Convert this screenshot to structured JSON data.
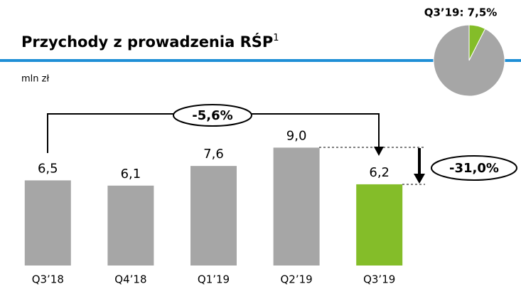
{
  "chart_data": [
    {
      "type": "bar",
      "title": "Przychody z prowadzenia RŚP",
      "title_superscript": "1",
      "subtitle": "mln zł",
      "categories": [
        "Q3’18",
        "Q4’18",
        "Q1’19",
        "Q2’19",
        "Q3’19"
      ],
      "values": [
        6.5,
        6.1,
        7.6,
        9.0,
        6.2
      ],
      "value_labels": [
        "6,5",
        "6,1",
        "7,6",
        "9,0",
        "6,2"
      ],
      "colors": [
        "#a6a6a6",
        "#a6a6a6",
        "#a6a6a6",
        "#a6a6a6",
        "#84bd29"
      ],
      "ylim": [
        0,
        10
      ],
      "annotations": [
        "-5,6%",
        "-31,0%"
      ]
    },
    {
      "type": "pie",
      "title": "Q3’19: 7,5%",
      "values": [
        7.5,
        92.5
      ],
      "colors": [
        "#84bd29",
        "#a6a6a6"
      ]
    }
  ]
}
